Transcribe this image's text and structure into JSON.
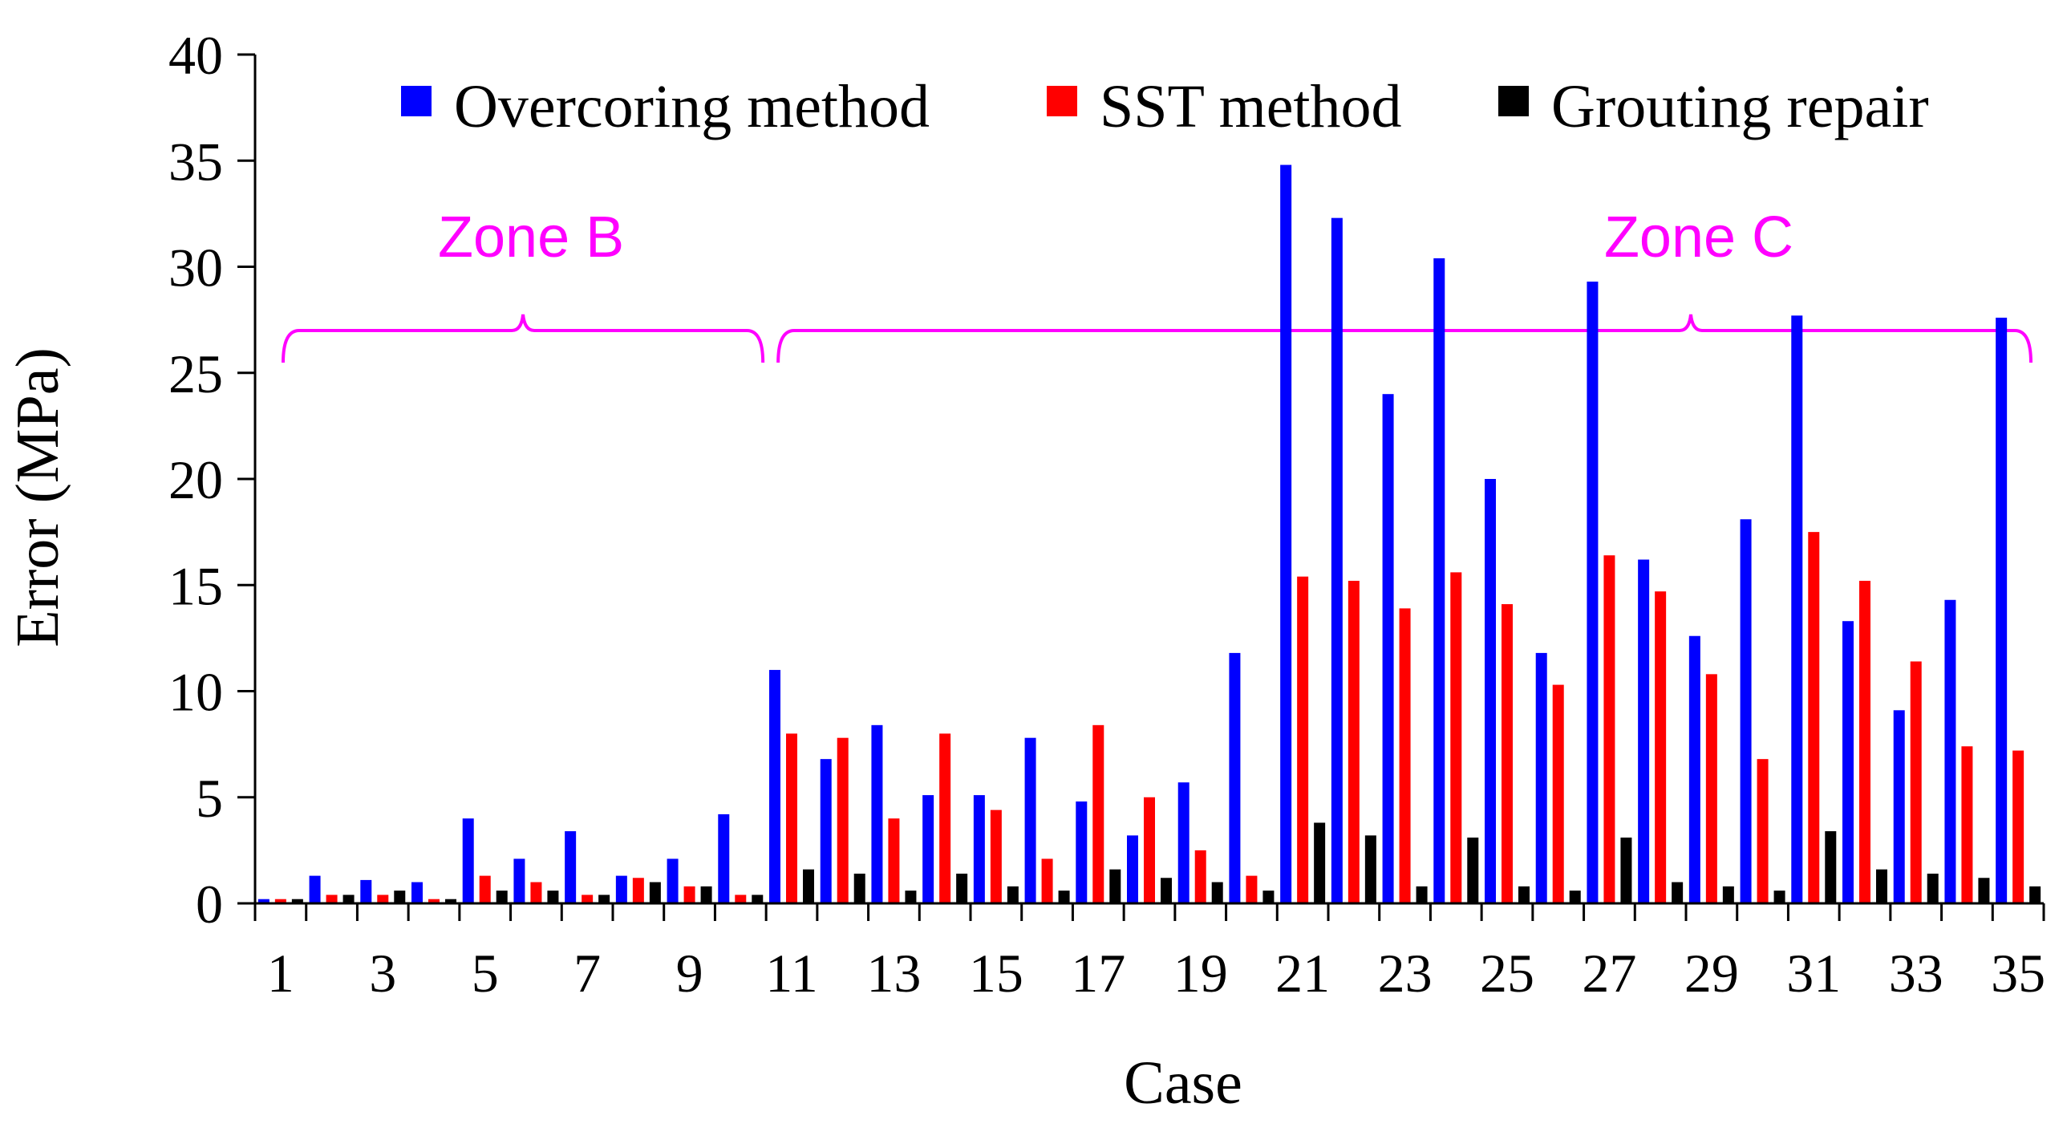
{
  "chart_data": {
    "type": "bar",
    "title": "",
    "xlabel": "Case",
    "ylabel": "Error (MPa)",
    "ylim": [
      0,
      40
    ],
    "yticks": [
      0,
      5,
      10,
      15,
      20,
      25,
      30,
      35,
      40
    ],
    "grid": false,
    "categories": [
      1,
      2,
      3,
      4,
      5,
      6,
      7,
      8,
      9,
      10,
      11,
      12,
      13,
      14,
      15,
      16,
      17,
      18,
      19,
      20,
      21,
      22,
      23,
      24,
      25,
      26,
      27,
      28,
      29,
      30,
      31,
      32,
      33,
      34,
      35
    ],
    "xtick_labels": [
      "1",
      "3",
      "5",
      "7",
      "9",
      "11",
      "13",
      "15",
      "17",
      "19",
      "21",
      "23",
      "25",
      "27",
      "29",
      "31",
      "33",
      "35"
    ],
    "legend_position": "top",
    "series": [
      {
        "name": "Overcoring method",
        "color": "#0000ff",
        "values": [
          0.2,
          1.3,
          1.1,
          1.0,
          4.0,
          2.1,
          3.4,
          1.3,
          2.1,
          4.2,
          11.0,
          6.8,
          8.4,
          5.1,
          5.1,
          7.8,
          4.8,
          3.2,
          5.7,
          11.8,
          34.8,
          32.3,
          24.0,
          30.4,
          20.0,
          11.8,
          29.3,
          16.2,
          12.6,
          18.1,
          27.7,
          13.3,
          9.1,
          14.3,
          27.6
        ]
      },
      {
        "name": "SST method",
        "color": "#ff0000",
        "values": [
          0.2,
          0.4,
          0.4,
          0.2,
          1.3,
          1.0,
          0.4,
          1.2,
          0.8,
          0.4,
          8.0,
          7.8,
          4.0,
          8.0,
          4.4,
          2.1,
          8.4,
          5.0,
          2.5,
          1.3,
          15.4,
          15.2,
          13.9,
          15.6,
          14.1,
          10.3,
          16.4,
          14.7,
          10.8,
          6.8,
          17.5,
          15.2,
          11.4,
          7.4,
          7.2
        ]
      },
      {
        "name": "Grouting repair",
        "color": "#000000",
        "values": [
          0.2,
          0.4,
          0.6,
          0.2,
          0.6,
          0.6,
          0.4,
          1.0,
          0.8,
          0.4,
          1.6,
          1.4,
          0.6,
          1.4,
          0.8,
          0.6,
          1.6,
          1.2,
          1.0,
          0.6,
          3.8,
          3.2,
          0.8,
          3.1,
          0.8,
          0.6,
          3.1,
          1.0,
          0.8,
          0.6,
          3.4,
          1.6,
          1.4,
          1.2,
          0.8
        ]
      }
    ],
    "annotations": [
      {
        "label": "Zone B",
        "from_case": 1,
        "to_case": 10,
        "color": "#ff00ff"
      },
      {
        "label": "Zone C",
        "from_case": 11,
        "to_case": 35,
        "color": "#ff00ff"
      }
    ]
  }
}
